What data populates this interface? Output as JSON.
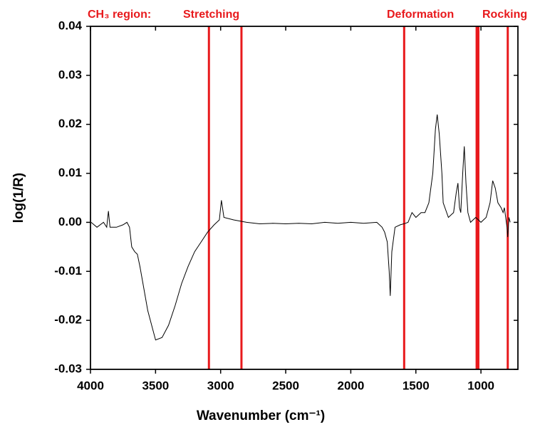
{
  "chart_data": {
    "type": "line",
    "x_label": "Wavenumber (cm⁻¹)",
    "y_label": "log(1/R)",
    "xlim": [
      4000,
      716
    ],
    "ylim": [
      -0.03,
      0.04
    ],
    "xticks": [
      4000,
      3500,
      3000,
      2500,
      2000,
      1500,
      1000
    ],
    "yticks": [
      0.04,
      0.03,
      0.02,
      0.01,
      {
        "value": 0,
        "label": "0.00"
      },
      -0.01,
      -0.02,
      -0.03
    ],
    "color": "#000000",
    "x": [
      3995,
      3950,
      3900,
      3875,
      3862,
      3850,
      3800,
      3750,
      3720,
      3700,
      3683,
      3660,
      3640,
      3620,
      3600,
      3560,
      3520,
      3500,
      3450,
      3400,
      3350,
      3300,
      3250,
      3200,
      3150,
      3100,
      3050,
      3010,
      2994,
      2975,
      2900,
      2800,
      2700,
      2600,
      2500,
      2400,
      2300,
      2200,
      2100,
      2000,
      1900,
      1800,
      1760,
      1740,
      1720,
      1705,
      1697,
      1685,
      1660,
      1620,
      1580,
      1560,
      1530,
      1500,
      1460,
      1430,
      1400,
      1370,
      1350,
      1336,
      1320,
      1300,
      1290,
      1250,
      1210,
      1190,
      1177,
      1165,
      1155,
      1140,
      1128,
      1115,
      1100,
      1080,
      1040,
      1000,
      960,
      930,
      910,
      890,
      870,
      845,
      830,
      820,
      800,
      794,
      785,
      775
    ],
    "values": [
      0.0,
      -0.001,
      0.0,
      -0.001,
      0.0023,
      -0.001,
      -0.001,
      -0.0005,
      0.0,
      -0.001,
      -0.005,
      -0.006,
      -0.0065,
      -0.009,
      -0.012,
      -0.018,
      -0.022,
      -0.024,
      -0.0235,
      -0.021,
      -0.017,
      -0.0125,
      -0.009,
      -0.006,
      -0.004,
      -0.002,
      -0.0005,
      0.0005,
      0.0045,
      0.001,
      0.0005,
      0.0,
      -0.0003,
      -0.0002,
      -0.0003,
      -0.0002,
      -0.0003,
      0.0,
      -0.0002,
      0.0,
      -0.0002,
      0.0,
      -0.001,
      -0.002,
      -0.004,
      -0.01,
      -0.015,
      -0.006,
      -0.001,
      -0.0005,
      -0.0002,
      0.0,
      0.002,
      0.001,
      0.002,
      0.002,
      0.004,
      0.01,
      0.019,
      0.022,
      0.018,
      0.01,
      0.004,
      0.001,
      0.002,
      0.006,
      0.008,
      0.003,
      0.002,
      0.01,
      0.0155,
      0.008,
      0.002,
      0.0,
      0.001,
      0.0,
      0.001,
      0.004,
      0.0085,
      0.007,
      0.004,
      0.003,
      0.002,
      0.003,
      -0.001,
      -0.003,
      0.001,
      0.0
    ],
    "markers": {
      "x": [
        3090,
        2840,
        1590,
        1033,
        1020,
        794
      ],
      "color": "#e8191c"
    },
    "annotations": [
      "CH₃ region:",
      "Stretching",
      "Deformation",
      "Rocking"
    ]
  }
}
